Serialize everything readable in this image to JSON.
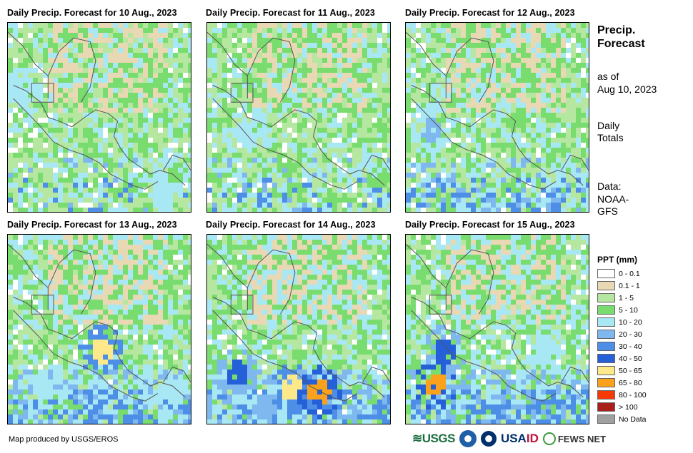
{
  "panels": [
    {
      "title": "Daily Precip. Forecast for 10 Aug., 2023",
      "hotspots": [
        [
          0.06,
          0.35,
          "l4"
        ],
        [
          0.85,
          0.85,
          "l4"
        ],
        [
          0.9,
          0.78,
          "l3"
        ]
      ]
    },
    {
      "title": "Daily Precip. Forecast for 11 Aug., 2023",
      "hotspots": [
        [
          0.2,
          0.57,
          "l4"
        ],
        [
          0.93,
          0.8,
          "l3"
        ]
      ]
    },
    {
      "title": "Daily Precip. Forecast for 12 Aug., 2023",
      "hotspots": [
        [
          0.12,
          0.55,
          "l5"
        ],
        [
          0.6,
          0.5,
          "l3"
        ]
      ]
    },
    {
      "title": "Daily Precip. Forecast for 13 Aug., 2023",
      "hotspots": [
        [
          0.5,
          0.6,
          "l8"
        ],
        [
          0.2,
          0.78,
          "l4"
        ],
        [
          0.85,
          0.83,
          "l4"
        ]
      ]
    },
    {
      "title": "Daily Precip. Forecast for 14 Aug., 2023",
      "hotspots": [
        [
          0.45,
          0.8,
          "l8"
        ],
        [
          0.15,
          0.72,
          "l7"
        ],
        [
          0.6,
          0.82,
          "l9"
        ],
        [
          0.3,
          0.9,
          "l5"
        ]
      ]
    },
    {
      "title": "Daily Precip. Forecast for 15 Aug., 2023",
      "hotspots": [
        [
          0.15,
          0.78,
          "l9"
        ],
        [
          0.2,
          0.6,
          "l7"
        ],
        [
          0.75,
          0.6,
          "l4"
        ]
      ]
    }
  ],
  "sidebar": {
    "title": "Precip. Forecast",
    "as_of_label": "as of",
    "as_of_date": "Aug 10, 2023",
    "totals": "Daily Totals",
    "data_label": "Data:",
    "data_source": "NOAA-GFS"
  },
  "legend": {
    "title": "PPT (mm)",
    "items": [
      {
        "label": "0 - 0.1",
        "color": "#ffffff"
      },
      {
        "label": "0.1 - 1",
        "color": "#e8d8b4"
      },
      {
        "label": "1 - 5",
        "color": "#b6e7a0"
      },
      {
        "label": "5 - 10",
        "color": "#79dc6e"
      },
      {
        "label": "10 - 20",
        "color": "#a8e8f4"
      },
      {
        "label": "20 - 30",
        "color": "#7fb8ee"
      },
      {
        "label": "30 - 40",
        "color": "#4d8ee6"
      },
      {
        "label": "40 - 50",
        "color": "#2560d8"
      },
      {
        "label": "50 - 65",
        "color": "#fde98a"
      },
      {
        "label": "65 - 80",
        "color": "#fba21c"
      },
      {
        "label": "80 - 100",
        "color": "#f53a08"
      },
      {
        "label": "> 100",
        "color": "#a8201a"
      },
      {
        "label": "No Data",
        "color": "#a0a0a0"
      }
    ]
  },
  "footer": {
    "credit": "Map produced by USGS/EROS",
    "logo_usgs": "USGS",
    "logo_usaid_a": "USA",
    "logo_usaid_b": "ID",
    "logo_fews": "FEWS NET"
  }
}
